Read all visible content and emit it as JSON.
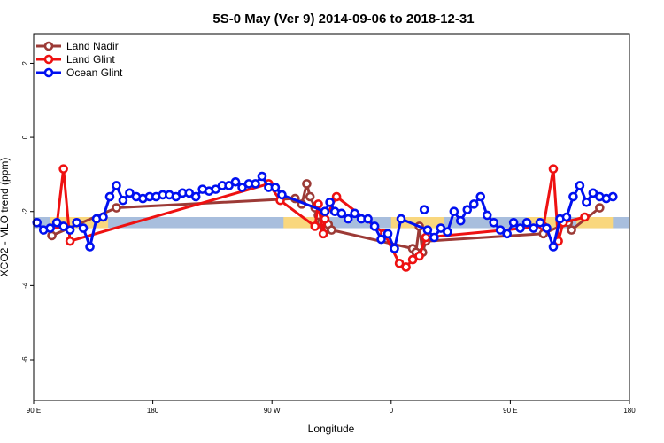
{
  "chart_data": {
    "type": "line",
    "title": "5S-0 May (Ver 9)   2014-09-06 to 2018-12-31",
    "xlabel": "Longitude",
    "ylabel": "XCO2 - MLO trend (ppm)",
    "xlim": [
      90,
      450
    ],
    "ylim": [
      -7.1,
      2.8
    ],
    "x_ticks": [
      {
        "value": 90,
        "label": "90 E"
      },
      {
        "value": 162,
        "label": "180"
      },
      {
        "value": 234,
        "label": "90 W"
      },
      {
        "value": 306,
        "label": "0"
      },
      {
        "value": 378,
        "label": "90 E"
      },
      {
        "value": 450,
        "label": "180"
      }
    ],
    "y_ticks": [
      {
        "value": 2,
        "label": "2"
      },
      {
        "value": 0,
        "label": "0"
      },
      {
        "value": -2,
        "label": "-2"
      },
      {
        "value": -4,
        "label": "-4"
      },
      {
        "value": -6,
        "label": "-6"
      }
    ],
    "legend_position": "top-left",
    "band": {
      "ymin": -2.45,
      "ymax": -2.15,
      "base_color": "#a8bedd",
      "highlight_color": "#f9d77e",
      "highlight_ranges": [
        [
          100,
          135
        ],
        [
          241,
          262
        ],
        [
          306,
          338
        ],
        [
          388,
          410
        ],
        [
          418,
          440
        ]
      ]
    },
    "series": [
      {
        "name": "Land Nadir",
        "color": "#9c3a36",
        "points": [
          [
            101,
            -2.65
          ],
          [
            140,
            -1.9
          ],
          [
            248,
            -1.65
          ],
          [
            252,
            -1.8
          ],
          [
            255,
            -1.25
          ],
          [
            257,
            -1.6
          ],
          [
            260,
            -1.9
          ],
          [
            262,
            -2.1
          ],
          [
            264,
            -2.3
          ],
          [
            266,
            -2.45
          ],
          [
            268,
            -2.35
          ],
          [
            270,
            -2.5
          ],
          [
            319,
            -3.0
          ],
          [
            321,
            -3.1
          ],
          [
            323,
            -2.4
          ],
          [
            325,
            -3.1
          ],
          [
            327,
            -2.8
          ],
          [
            398,
            -2.6
          ],
          [
            413,
            -2.3
          ],
          [
            415,
            -2.5
          ],
          [
            432,
            -1.9
          ]
        ]
      },
      {
        "name": "Land Glint",
        "color": "#ee1111",
        "points": [
          [
            104,
            -2.35
          ],
          [
            108,
            -0.85
          ],
          [
            112,
            -2.8
          ],
          [
            232,
            -1.25
          ],
          [
            239,
            -1.7
          ],
          [
            260,
            -2.4
          ],
          [
            262,
            -1.8
          ],
          [
            265,
            -2.6
          ],
          [
            266,
            -2.2
          ],
          [
            273,
            -1.6
          ],
          [
            302,
            -2.6
          ],
          [
            311,
            -3.4
          ],
          [
            315,
            -3.5
          ],
          [
            319,
            -3.3
          ],
          [
            323,
            -3.2
          ],
          [
            327,
            -2.7
          ],
          [
            398,
            -2.4
          ],
          [
            404,
            -0.85
          ],
          [
            407,
            -2.8
          ],
          [
            410,
            -2.3
          ],
          [
            423,
            -2.15
          ]
        ]
      },
      {
        "name": "Ocean Glint",
        "color": "#0010f0",
        "points": [
          [
            92,
            -2.3
          ],
          [
            96,
            -2.5
          ],
          [
            100,
            -2.45
          ],
          [
            104,
            -2.3
          ],
          [
            108,
            -2.4
          ],
          [
            112,
            -2.5
          ],
          [
            116,
            -2.3
          ],
          [
            120,
            -2.45
          ],
          [
            124,
            -2.95
          ],
          [
            128,
            -2.2
          ],
          [
            132,
            -2.15
          ],
          [
            136,
            -1.6
          ],
          [
            140,
            -1.3
          ],
          [
            144,
            -1.7
          ],
          [
            148,
            -1.5
          ],
          [
            152,
            -1.6
          ],
          [
            156,
            -1.65
          ],
          [
            160,
            -1.6
          ],
          [
            164,
            -1.6
          ],
          [
            168,
            -1.55
          ],
          [
            172,
            -1.55
          ],
          [
            176,
            -1.6
          ],
          [
            180,
            -1.5
          ],
          [
            184,
            -1.5
          ],
          [
            188,
            -1.6
          ],
          [
            192,
            -1.4
          ],
          [
            196,
            -1.45
          ],
          [
            200,
            -1.4
          ],
          [
            204,
            -1.3
          ],
          [
            208,
            -1.3
          ],
          [
            212,
            -1.2
          ],
          [
            216,
            -1.35
          ],
          [
            220,
            -1.25
          ],
          [
            224,
            -1.25
          ],
          [
            228,
            -1.05
          ],
          [
            232,
            -1.35
          ],
          [
            236,
            -1.35
          ],
          [
            240,
            -1.55
          ],
          [
            266,
            -2.0
          ],
          [
            269,
            -1.75
          ],
          [
            272,
            -2.0
          ],
          [
            276,
            -2.05
          ],
          [
            280,
            -2.2
          ],
          [
            284,
            -2.05
          ],
          [
            288,
            -2.2
          ],
          [
            292,
            -2.2
          ],
          [
            296,
            -2.4
          ],
          [
            300,
            -2.75
          ],
          [
            304,
            -2.6
          ],
          [
            308,
            -3.0
          ],
          [
            312,
            -2.2
          ],
          [
            328,
            -2.5
          ],
          [
            332,
            -2.7
          ],
          [
            336,
            -2.45
          ],
          [
            340,
            -2.55
          ],
          [
            344,
            -2.0
          ],
          [
            348,
            -2.25
          ],
          [
            352,
            -1.95
          ],
          [
            356,
            -1.8
          ],
          [
            360,
            -1.6
          ],
          [
            364,
            -2.1
          ],
          [
            368,
            -2.3
          ],
          [
            372,
            -2.5
          ],
          [
            376,
            -2.6
          ],
          [
            380,
            -2.3
          ],
          [
            384,
            -2.45
          ],
          [
            388,
            -2.3
          ],
          [
            392,
            -2.45
          ],
          [
            396,
            -2.3
          ],
          [
            400,
            -2.45
          ],
          [
            404,
            -2.95
          ],
          [
            408,
            -2.2
          ],
          [
            412,
            -2.15
          ],
          [
            416,
            -1.6
          ],
          [
            420,
            -1.3
          ],
          [
            424,
            -1.75
          ],
          [
            428,
            -1.5
          ],
          [
            432,
            -1.6
          ],
          [
            436,
            -1.65
          ],
          [
            440,
            -1.6
          ]
        ],
        "isolated_points": [
          [
            326,
            -1.95
          ]
        ]
      }
    ]
  }
}
